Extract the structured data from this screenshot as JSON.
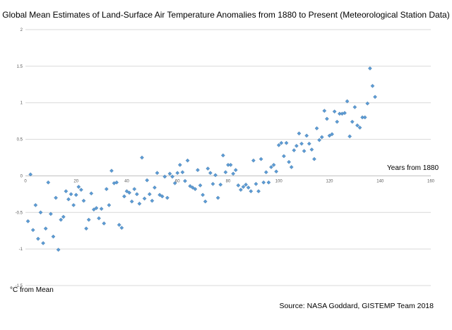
{
  "chart_data": {
    "type": "scatter",
    "title": "Global Mean Estimates of Land-Surface Air Temperature Anomalies from 1880 to Present (Meteorological Station Data)",
    "xlabel": "Years from 1880",
    "ylabel": "°C from Mean",
    "source": "Source: NASA Goddard, GISTEMP Team 2018",
    "xlim": [
      0,
      160
    ],
    "ylim": [
      -1.5,
      2
    ],
    "x_ticks": [
      "0",
      "20",
      "40",
      "60",
      "80",
      "100",
      "120",
      "140",
      "160"
    ],
    "y_ticks": [
      "-1.5",
      "-1",
      "-0.5",
      "0",
      "0.5",
      "1",
      "1.5",
      "2"
    ],
    "grid": "horizontal",
    "legend": "none",
    "marker": "diamond",
    "color": "#5b9bd5",
    "x": [
      1,
      2,
      3,
      4,
      5,
      6,
      7,
      8,
      9,
      10,
      11,
      12,
      13,
      14,
      15,
      16,
      17,
      18,
      19,
      20,
      21,
      22,
      23,
      24,
      25,
      26,
      27,
      28,
      29,
      30,
      31,
      32,
      33,
      34,
      35,
      36,
      37,
      38,
      39,
      40,
      41,
      42,
      43,
      44,
      45,
      46,
      47,
      48,
      49,
      50,
      51,
      52,
      53,
      54,
      55,
      56,
      57,
      58,
      59,
      60,
      61,
      62,
      63,
      64,
      65,
      66,
      67,
      68,
      69,
      70,
      71,
      72,
      73,
      74,
      75,
      76,
      77,
      78,
      79,
      80,
      81,
      82,
      83,
      84,
      85,
      86,
      87,
      88,
      89,
      90,
      91,
      92,
      93,
      94,
      95,
      96,
      97,
      98,
      99,
      100,
      101,
      102,
      103,
      104,
      105,
      106,
      107,
      108,
      109,
      110,
      111,
      112,
      113,
      114,
      115,
      116,
      117,
      118,
      119,
      120,
      121,
      122,
      123,
      124,
      125,
      126,
      127,
      128,
      129,
      130,
      131,
      132,
      133,
      134,
      135,
      136,
      137,
      138
    ],
    "values": [
      -0.62,
      0.02,
      -0.74,
      -0.4,
      -0.86,
      -0.5,
      -0.92,
      -0.72,
      -0.09,
      -0.52,
      -0.83,
      -0.3,
      -1.01,
      -0.6,
      -0.56,
      -0.21,
      -0.32,
      -0.25,
      -0.4,
      -0.26,
      -0.15,
      -0.19,
      -0.34,
      -0.72,
      -0.6,
      -0.24,
      -0.46,
      -0.44,
      -0.58,
      -0.45,
      -0.65,
      -0.18,
      -0.4,
      0.07,
      -0.1,
      -0.09,
      -0.67,
      -0.71,
      -0.28,
      -0.21,
      -0.23,
      -0.35,
      -0.18,
      -0.25,
      -0.38,
      0.25,
      -0.31,
      -0.06,
      -0.25,
      -0.34,
      -0.16,
      0.04,
      -0.26,
      -0.28,
      -0.01,
      -0.3,
      0.03,
      -0.01,
      -0.1,
      0.04,
      0.15,
      0.05,
      -0.07,
      0.21,
      -0.14,
      -0.16,
      -0.18,
      0.08,
      -0.13,
      -0.26,
      -0.35,
      0.1,
      0.04,
      -0.11,
      0.01,
      -0.3,
      -0.12,
      0.28,
      0.05,
      0.15,
      0.15,
      0.03,
      0.08,
      -0.13,
      -0.19,
      -0.15,
      -0.12,
      -0.16,
      -0.21,
      0.21,
      -0.11,
      -0.21,
      0.23,
      -0.09,
      0.05,
      -0.09,
      0.12,
      0.15,
      0.06,
      0.42,
      0.45,
      0.27,
      0.45,
      0.19,
      0.12,
      0.35,
      0.41,
      0.58,
      0.44,
      0.34,
      0.55,
      0.44,
      0.36,
      0.23,
      0.65,
      0.49,
      0.53,
      0.89,
      0.78,
      0.55,
      0.57,
      0.88,
      0.74,
      0.85,
      0.85,
      0.86,
      1.02,
      0.54,
      0.74,
      0.94,
      0.69,
      0.66,
      0.8,
      0.8,
      0.99,
      1.47,
      1.23,
      1.08
    ]
  }
}
